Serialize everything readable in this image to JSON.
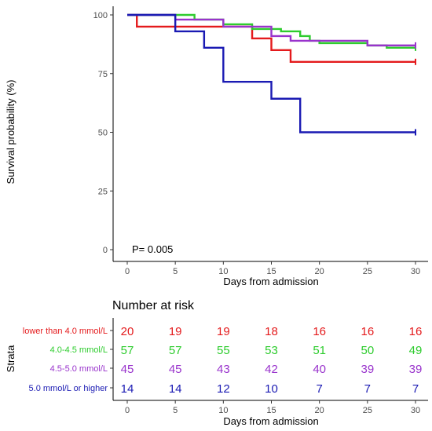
{
  "chart_data": [
    {
      "type": "line",
      "subtype": "kaplan-meier",
      "xlabel": "Days from admission",
      "ylabel": "Survival probability (%)",
      "xlim": [
        0,
        30
      ],
      "ylim": [
        0,
        100
      ],
      "xticks": [
        "0",
        "5",
        "10",
        "15",
        "20",
        "25",
        "30"
      ],
      "yticks": [
        "0",
        "25",
        "50",
        "75",
        "100"
      ],
      "annotation": "P= 0.005",
      "grid": false,
      "series": [
        {
          "name": "lower than 4.0 mmol/L",
          "color": "#e41a1c",
          "steps": [
            [
              0,
              100
            ],
            [
              1,
              95
            ],
            [
              13,
              90
            ],
            [
              15,
              85
            ],
            [
              17,
              80
            ],
            [
              30,
              80
            ]
          ]
        },
        {
          "name": "4.0-4.5 mmol/L",
          "color": "#2ecc2e",
          "steps": [
            [
              0,
              100
            ],
            [
              7,
              98
            ],
            [
              10,
              96
            ],
            [
              13,
              94
            ],
            [
              16,
              93
            ],
            [
              18,
              91
            ],
            [
              19,
              89
            ],
            [
              20,
              88
            ],
            [
              25,
              87
            ],
            [
              27,
              86
            ],
            [
              30,
              86
            ]
          ]
        },
        {
          "name": "4.5-5.0 mmol/L",
          "color": "#9933cc",
          "steps": [
            [
              0,
              100
            ],
            [
              5,
              98
            ],
            [
              10,
              95
            ],
            [
              15,
              91
            ],
            [
              17,
              89
            ],
            [
              22,
              89
            ],
            [
              25,
              87
            ],
            [
              30,
              87
            ]
          ]
        },
        {
          "name": "5.0 mmol/L or higher",
          "color": "#1a1ab3",
          "steps": [
            [
              0,
              100
            ],
            [
              5,
              93
            ],
            [
              8,
              86
            ],
            [
              10,
              71.5
            ],
            [
              15,
              64.3
            ],
            [
              18,
              50
            ],
            [
              30,
              50
            ]
          ]
        }
      ]
    },
    {
      "type": "table",
      "title": "Number at risk",
      "ylabel": "Strata",
      "xlabel": "Days from admission",
      "xticks": [
        "0",
        "5",
        "10",
        "15",
        "20",
        "25",
        "30"
      ],
      "rows": [
        {
          "label": "lower than 4.0 mmol/L",
          "color": "#e41a1c",
          "values": [
            "20",
            "19",
            "19",
            "18",
            "16",
            "16",
            "16"
          ]
        },
        {
          "label": "4.0-4.5 mmol/L",
          "color": "#2ecc2e",
          "values": [
            "57",
            "57",
            "55",
            "53",
            "51",
            "50",
            "49"
          ]
        },
        {
          "label": "4.5-5.0 mmol/L",
          "color": "#9933cc",
          "values": [
            "45",
            "45",
            "43",
            "42",
            "40",
            "39",
            "39"
          ]
        },
        {
          "label": "5.0 mmol/L or higher",
          "color": "#1a1ab3",
          "values": [
            "14",
            "14",
            "12",
            "10",
            "7",
            "7",
            "7"
          ]
        }
      ]
    }
  ]
}
